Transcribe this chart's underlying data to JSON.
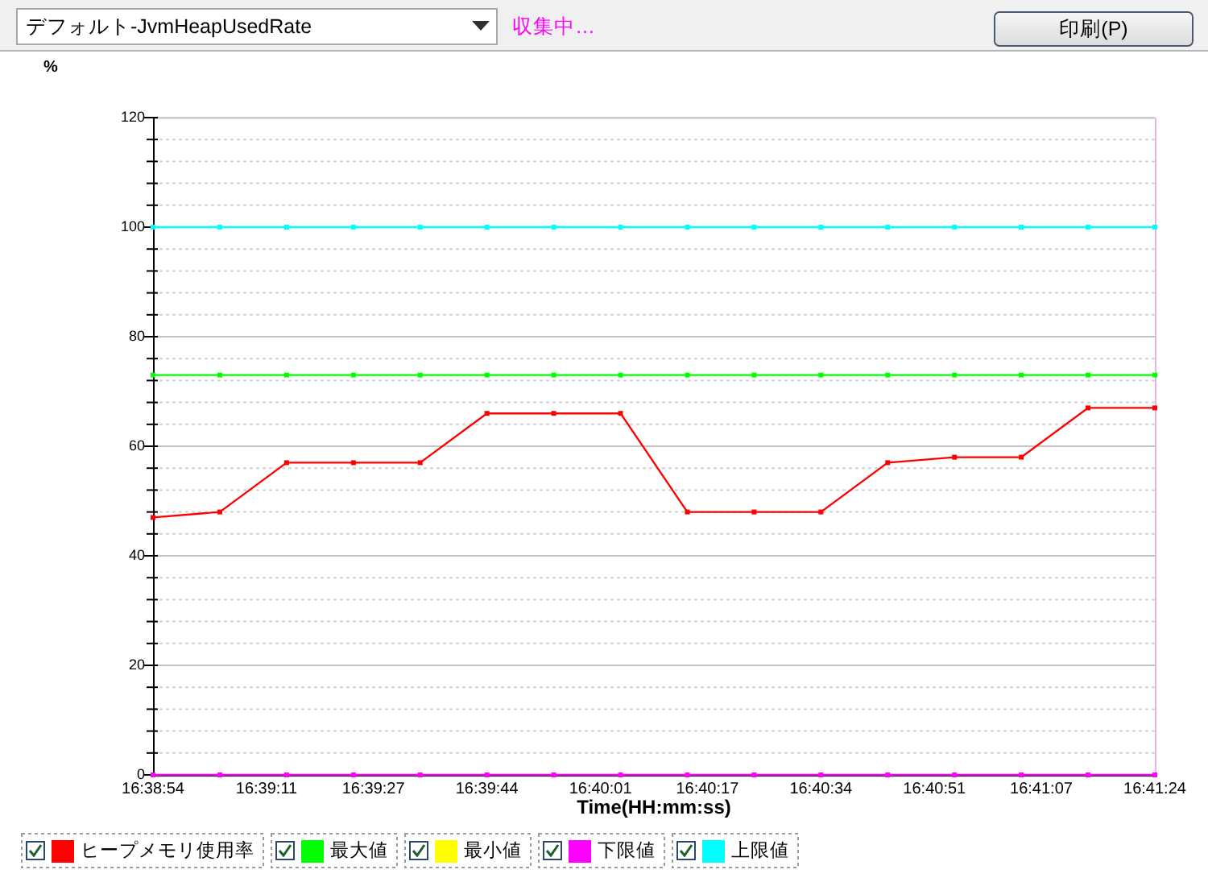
{
  "chart_data": {
    "type": "line",
    "title": "デフォルト-JvmHeapUsedRate",
    "ylabel": "%",
    "xlabel": "Time(HH:mm:ss)",
    "annotations": [
      "収集中…",
      "印刷(P)"
    ],
    "x": [
      16.648333,
      16.651111,
      16.653889,
      16.656667,
      16.659444,
      16.662222,
      16.665,
      16.667778,
      16.670556,
      16.673333,
      16.676111,
      16.678889,
      16.681667,
      16.684444,
      16.687222,
      16.69
    ],
    "xlim": [
      16.648333,
      16.69
    ],
    "xticks": [
      {
        "value": 16.648333,
        "label": "16:38:54"
      },
      {
        "value": 16.653056,
        "label": "16:39:11"
      },
      {
        "value": 16.6575,
        "label": "16:39:27"
      },
      {
        "value": 16.662222,
        "label": "16:39:44"
      },
      {
        "value": 16.666944,
        "label": "16:40:01"
      },
      {
        "value": 16.671389,
        "label": "16:40:17"
      },
      {
        "value": 16.676111,
        "label": "16:40:34"
      },
      {
        "value": 16.680833,
        "label": "16:40:51"
      },
      {
        "value": 16.685278,
        "label": "16:41:07"
      },
      {
        "value": 16.69,
        "label": "16:41:24"
      }
    ],
    "ylim": [
      0,
      120
    ],
    "yticks": [
      0,
      {
        "value": 4,
        "label": null
      },
      {
        "value": 8,
        "label": null
      },
      {
        "value": 12,
        "label": null
      },
      {
        "value": 16,
        "label": null
      },
      20,
      {
        "value": 24,
        "label": null
      },
      {
        "value": 28,
        "label": null
      },
      {
        "value": 32,
        "label": null
      },
      {
        "value": 36,
        "label": null
      },
      40,
      {
        "value": 44,
        "label": null
      },
      {
        "value": 48,
        "label": null
      },
      {
        "value": 52,
        "label": null
      },
      {
        "value": 56,
        "label": null
      },
      60,
      {
        "value": 64,
        "label": null
      },
      {
        "value": 68,
        "label": null
      },
      {
        "value": 72,
        "label": null
      },
      {
        "value": 76,
        "label": null
      },
      80,
      {
        "value": 84,
        "label": null
      },
      {
        "value": 88,
        "label": null
      },
      {
        "value": 92,
        "label": null
      },
      {
        "value": 96,
        "label": null
      },
      100,
      {
        "value": 104,
        "label": null
      },
      {
        "value": 108,
        "label": null
      },
      {
        "value": 112,
        "label": null
      },
      {
        "value": 116,
        "label": null
      },
      120
    ],
    "grid": "y",
    "legend": "bottom",
    "marker": "square",
    "line_style": "solid",
    "series": [
      {
        "name": "ヒープメモリ使用率",
        "color": "#ff0000",
        "values": [
          47,
          48,
          57,
          57,
          57,
          66,
          66,
          66,
          48,
          48,
          48,
          57,
          58,
          58,
          67,
          67
        ]
      },
      {
        "name": "最大値",
        "color": "#00ff00",
        "values": [
          73,
          73,
          73,
          73,
          73,
          73,
          73,
          73,
          73,
          73,
          73,
          73,
          73,
          73,
          73,
          73
        ]
      },
      {
        "name": "最小値",
        "color": "#ffff00",
        "values": [
          null,
          null,
          null,
          null,
          null,
          null,
          null,
          null,
          null,
          null,
          null,
          null,
          null,
          null,
          null,
          null
        ]
      },
      {
        "name": "下限値",
        "color": "#ff00ff",
        "values": [
          0,
          0,
          0,
          0,
          0,
          0,
          0,
          0,
          0,
          0,
          0,
          0,
          0,
          0,
          0,
          0
        ]
      },
      {
        "name": "上限値",
        "color": "#00ffff",
        "values": [
          100,
          100,
          100,
          100,
          100,
          100,
          100,
          100,
          100,
          100,
          100,
          100,
          100,
          100,
          100,
          100
        ]
      }
    ]
  }
}
